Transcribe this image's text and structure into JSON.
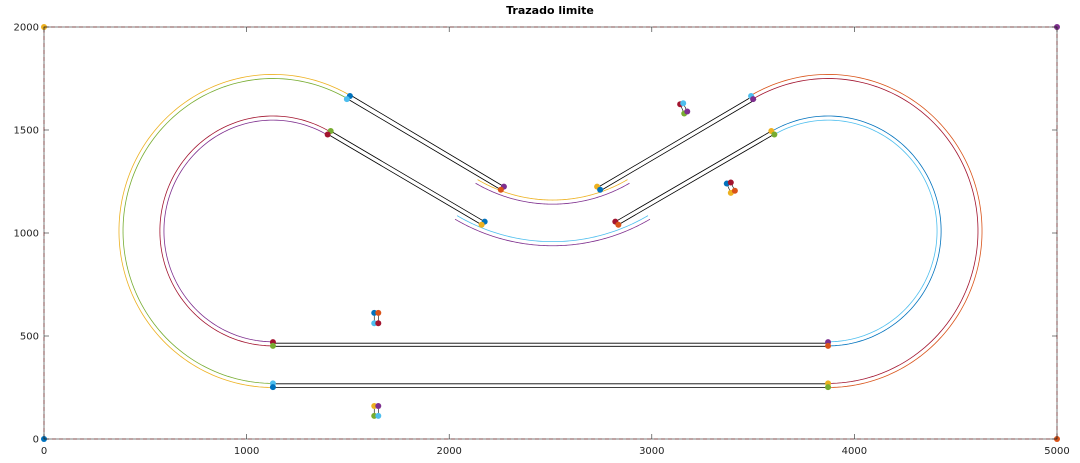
{
  "chart_data": {
    "type": "line",
    "title": "Trazado limite",
    "xlabel": "",
    "ylabel": "",
    "xlim": [
      0,
      5000
    ],
    "ylim": [
      0,
      2000
    ],
    "x_ticks": [
      0,
      1000,
      2000,
      3000,
      4000,
      5000
    ],
    "y_ticks": [
      0,
      500,
      1000,
      1500,
      2000
    ],
    "grid": false,
    "box": true,
    "colors": {
      "blue": "#0072BD",
      "orange": "#D95319",
      "yellow": "#EDB120",
      "purple": "#7E2F8E",
      "green": "#77AC30",
      "cyan": "#4DBEEE",
      "red": "#A2142F",
      "boundary": "#FF7F7F",
      "straight": "#000000"
    },
    "boundary": {
      "corners": [
        [
          0,
          0
        ],
        [
          0,
          2000
        ],
        [
          5000,
          2000
        ],
        [
          5000,
          0
        ]
      ],
      "corner_colors": [
        "blue",
        "yellow",
        "purple",
        "orange"
      ]
    },
    "track_curves": [
      {
        "center": [
          1130,
          1010
        ],
        "radius": 750,
        "from_deg": 270,
        "to_deg": 60,
        "colors": [
          "green",
          "yellow"
        ]
      },
      {
        "center": [
          1130,
          1010
        ],
        "radius": 548,
        "from_deg": 270,
        "to_deg": 60,
        "colors": [
          "purple",
          "red"
        ]
      },
      {
        "center": [
          2510,
          1900
        ],
        "radius": 750,
        "from_deg": 240,
        "to_deg": 300,
        "colors": [
          "yellow",
          "purple"
        ]
      },
      {
        "center": [
          2510,
          1900
        ],
        "radius": 952,
        "from_deg": 240,
        "to_deg": 300,
        "colors": [
          "cyan",
          "purple"
        ]
      },
      {
        "center": [
          3870,
          1010
        ],
        "radius": 750,
        "from_deg": 120,
        "to_deg": -90,
        "colors": [
          "red",
          "orange"
        ]
      },
      {
        "center": [
          3870,
          1010
        ],
        "radius": 548,
        "from_deg": 120,
        "to_deg": -90,
        "colors": [
          "cyan",
          "blue"
        ]
      }
    ],
    "straights": [
      {
        "from": [
          1130,
          465
        ],
        "to": [
          3870,
          465
        ]
      },
      {
        "from": [
          1130,
          450
        ],
        "to": [
          3870,
          450
        ]
      },
      {
        "from": [
          1130,
          268
        ],
        "to": [
          3870,
          268
        ]
      },
      {
        "from": [
          1130,
          250
        ],
        "to": [
          3870,
          250
        ]
      },
      {
        "from": [
          1520,
          1665
        ],
        "to": [
          2270,
          1225
        ]
      },
      {
        "from": [
          1500,
          1650
        ],
        "to": [
          2255,
          1210
        ]
      },
      {
        "from": [
          1415,
          1495
        ],
        "to": [
          2175,
          1055
        ]
      },
      {
        "from": [
          1400,
          1480
        ],
        "to": [
          2160,
          1040
        ]
      },
      {
        "from": [
          2740,
          1225
        ],
        "to": [
          3500,
          1665
        ]
      },
      {
        "from": [
          2755,
          1210
        ],
        "to": [
          3515,
          1650
        ]
      },
      {
        "from": [
          2820,
          1055
        ],
        "to": [
          3590,
          1495
        ]
      },
      {
        "from": [
          2835,
          1040
        ],
        "to": [
          3605,
          1480
        ]
      }
    ],
    "markers": [
      {
        "x": 1130,
        "y": 470,
        "color": "red"
      },
      {
        "x": 1130,
        "y": 452,
        "color": "green"
      },
      {
        "x": 1130,
        "y": 270,
        "color": "cyan"
      },
      {
        "x": 1130,
        "y": 252,
        "color": "blue"
      },
      {
        "x": 3870,
        "y": 470,
        "color": "purple"
      },
      {
        "x": 3870,
        "y": 452,
        "color": "orange"
      },
      {
        "x": 3870,
        "y": 270,
        "color": "yellow"
      },
      {
        "x": 3870,
        "y": 252,
        "color": "green"
      },
      {
        "x": 1630,
        "y": 612,
        "color": "blue"
      },
      {
        "x": 1650,
        "y": 612,
        "color": "orange"
      },
      {
        "x": 1630,
        "y": 562,
        "color": "cyan"
      },
      {
        "x": 1650,
        "y": 562,
        "color": "red"
      },
      {
        "x": 1630,
        "y": 160,
        "color": "yellow"
      },
      {
        "x": 1650,
        "y": 160,
        "color": "purple"
      },
      {
        "x": 1630,
        "y": 112,
        "color": "green"
      },
      {
        "x": 1650,
        "y": 112,
        "color": "cyan"
      },
      {
        "x": 1510,
        "y": 1665,
        "color": "blue"
      },
      {
        "x": 1495,
        "y": 1650,
        "color": "cyan"
      },
      {
        "x": 1415,
        "y": 1495,
        "color": "green"
      },
      {
        "x": 1400,
        "y": 1478,
        "color": "red"
      },
      {
        "x": 2270,
        "y": 1225,
        "color": "purple"
      },
      {
        "x": 2255,
        "y": 1210,
        "color": "orange"
      },
      {
        "x": 2175,
        "y": 1055,
        "color": "blue"
      },
      {
        "x": 2160,
        "y": 1040,
        "color": "yellow"
      },
      {
        "x": 2730,
        "y": 1225,
        "color": "yellow"
      },
      {
        "x": 2745,
        "y": 1210,
        "color": "blue"
      },
      {
        "x": 2820,
        "y": 1055,
        "color": "red"
      },
      {
        "x": 2835,
        "y": 1040,
        "color": "orange"
      },
      {
        "x": 3490,
        "y": 1665,
        "color": "cyan"
      },
      {
        "x": 3500,
        "y": 1650,
        "color": "purple"
      },
      {
        "x": 3590,
        "y": 1495,
        "color": "yellow"
      },
      {
        "x": 3605,
        "y": 1478,
        "color": "green"
      },
      {
        "x": 3140,
        "y": 1625,
        "color": "red"
      },
      {
        "x": 3155,
        "y": 1630,
        "color": "cyan"
      },
      {
        "x": 3160,
        "y": 1580,
        "color": "green"
      },
      {
        "x": 3175,
        "y": 1590,
        "color": "purple"
      },
      {
        "x": 3370,
        "y": 1240,
        "color": "blue"
      },
      {
        "x": 3390,
        "y": 1245,
        "color": "red"
      },
      {
        "x": 3390,
        "y": 1195,
        "color": "yellow"
      },
      {
        "x": 3410,
        "y": 1205,
        "color": "orange"
      }
    ]
  }
}
